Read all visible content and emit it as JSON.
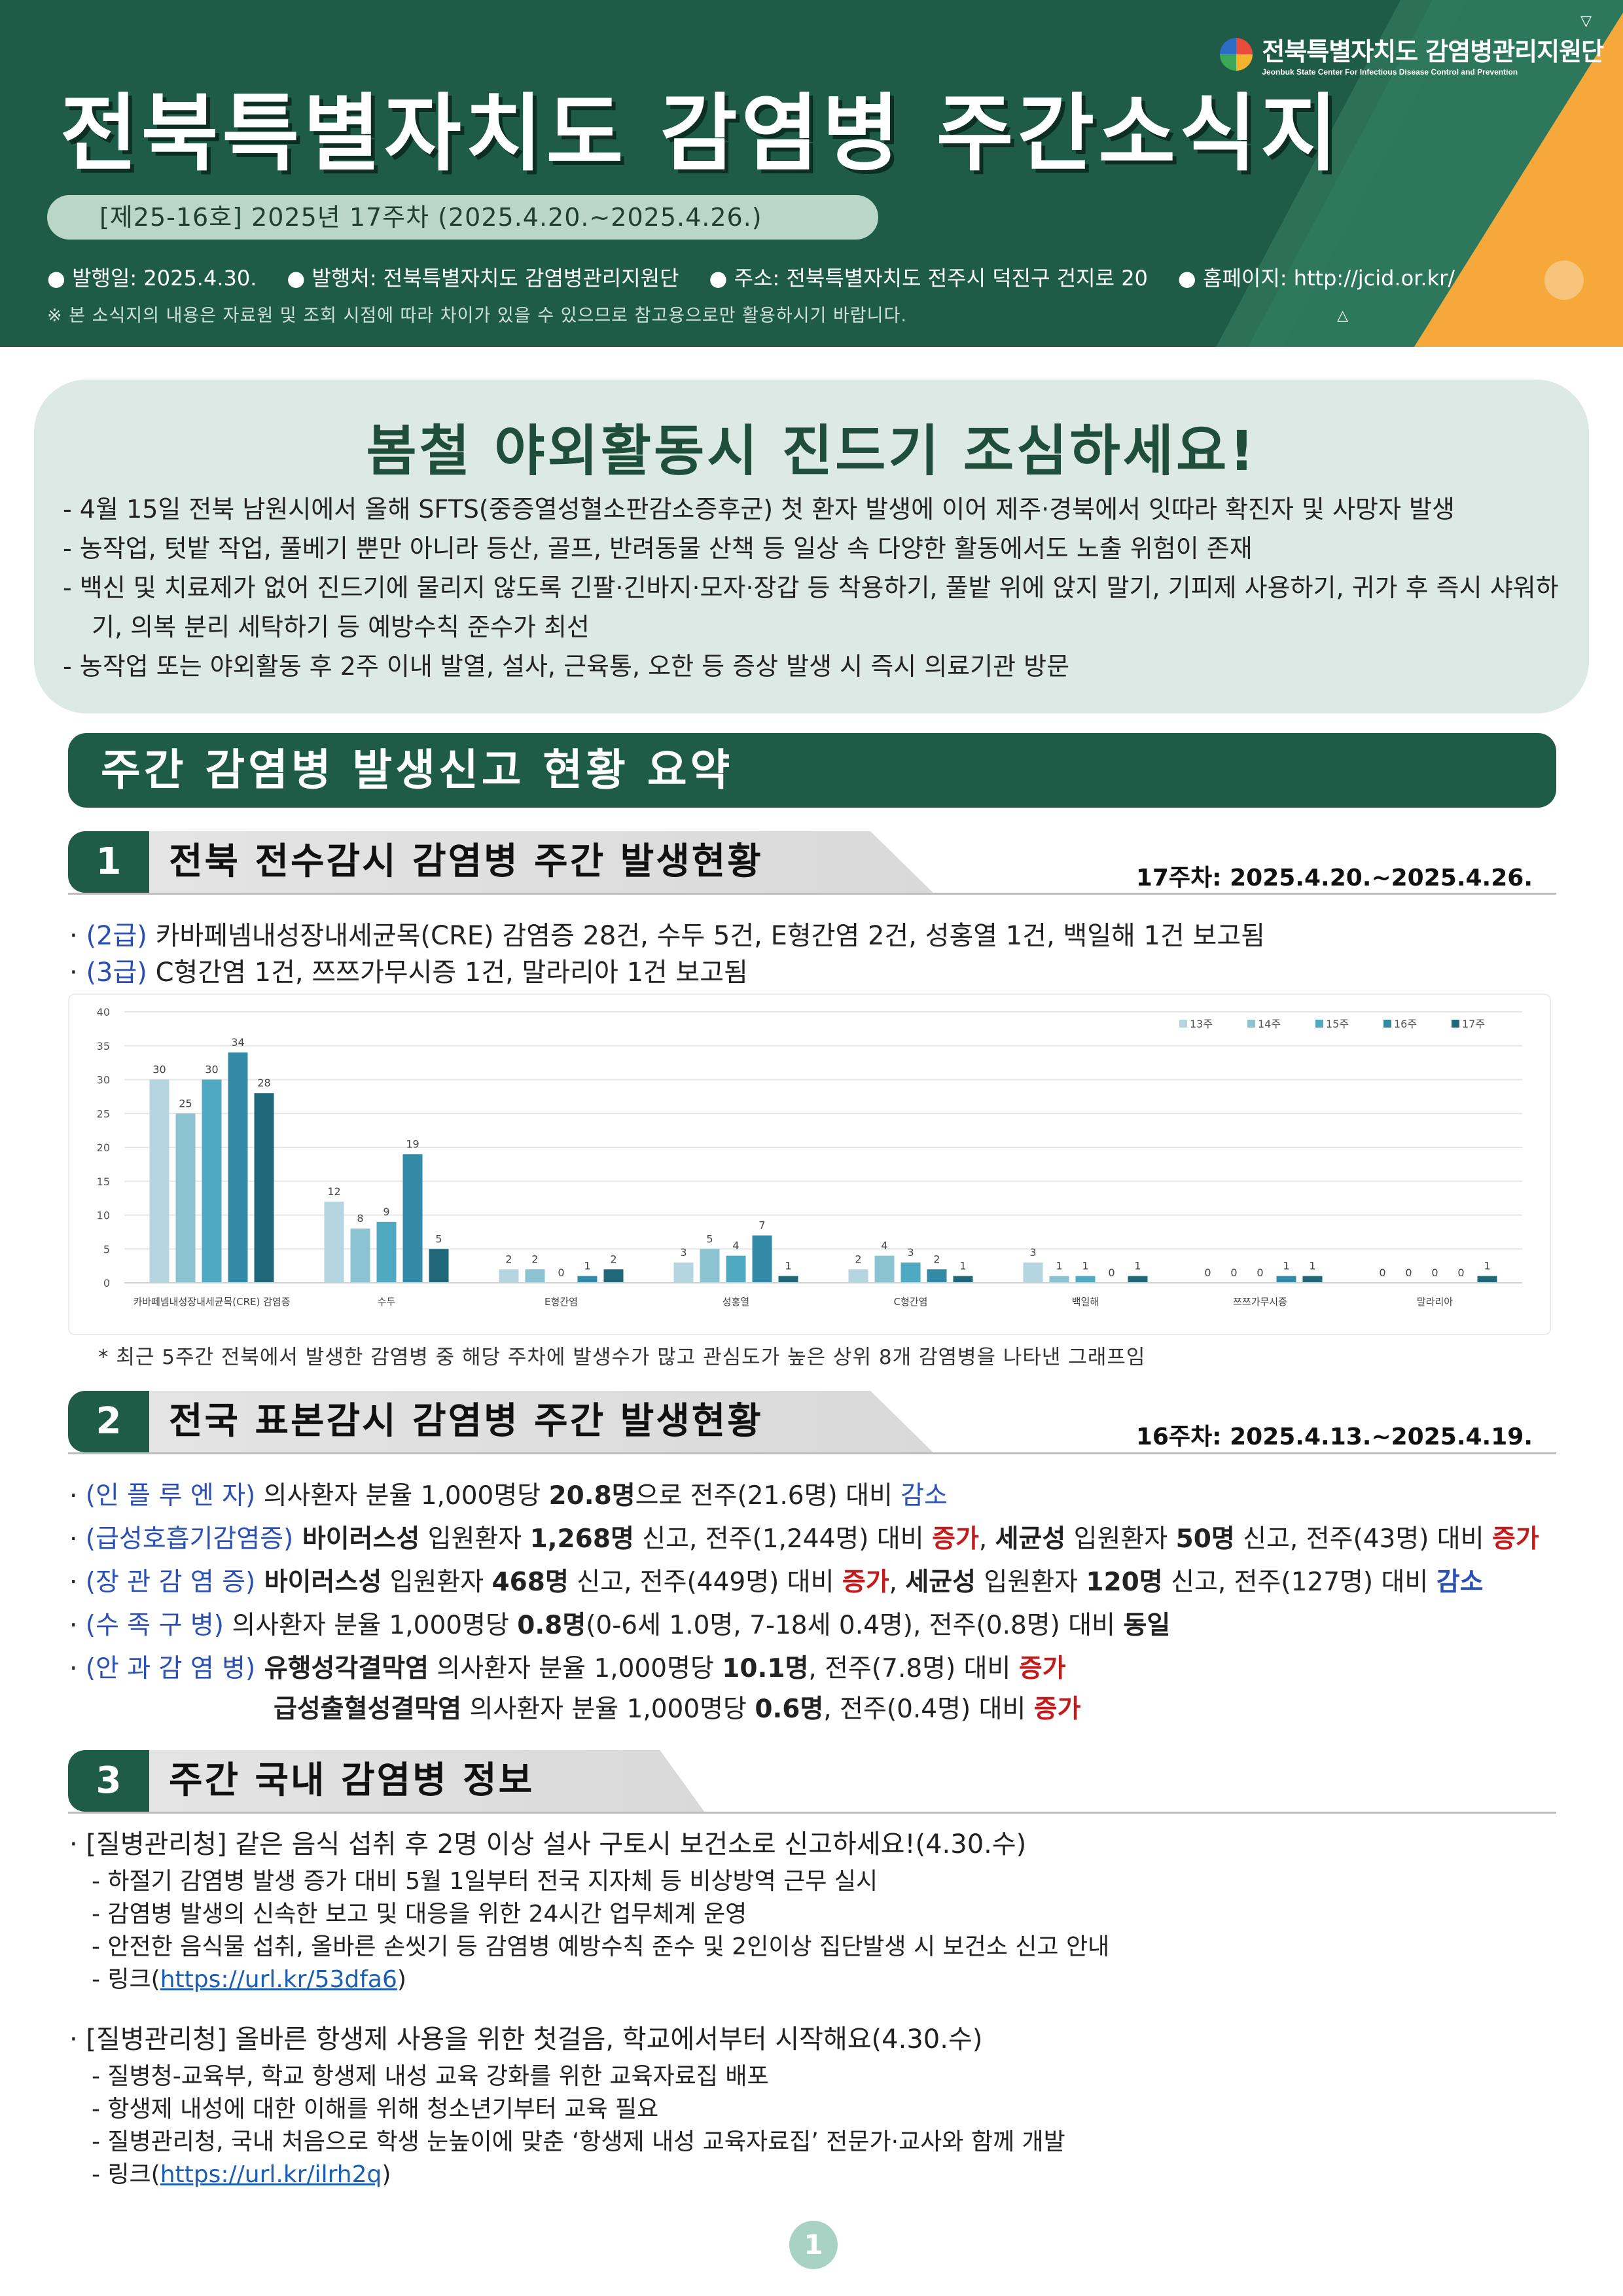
{
  "header": {
    "org_name_ko": "전북특별자치도 감염병관리지원단",
    "org_name_en": "Jeonbuk State Center For Infectious Disease Control and Prevention",
    "title": "전북특별자치도  감염병  주간소식지",
    "issue": "[제25-16호]  2025년  17주차  (2025.4.20.~2025.4.26.)",
    "meta": [
      "발행일: 2025.4.30.",
      "발행처: 전북특별자치도 감염병관리지원단",
      "주소: 전북특별자치도 전주시 덕진구 건지로 20",
      "홈페이지: http://jcid.or.kr/"
    ],
    "notice": "※ 본 소식지의 내용은 자료원 및 조회 시점에 따라 차이가 있을 수 있으므로 참고용으로만 활용하시기 바랍니다."
  },
  "highlight": {
    "title": "봄철  야외활동시  진드기  조심하세요!",
    "items": [
      "4월 15일 전북 남원시에서 올해 SFTS(중증열성혈소판감소증후군) 첫 환자 발생에 이어 제주·경북에서 잇따라 확진자 및 사망자 발생",
      "농작업, 텃밭 작업, 풀베기 뿐만 아니라 등산, 골프, 반려동물 산책 등 일상 속 다양한 활동에서도 노출 위험이 존재",
      "백신 및 치료제가 없어 진드기에 물리지 않도록 긴팔·긴바지·모자·장갑 등 착용하기, 풀밭 위에 앉지 말기, 기피제 사용하기, 귀가 후 즉시 샤워하기, 의복 분리 세탁하기 등 예방수칙 준수가 최선",
      "농작업 또는 야외활동 후 2주 이내 발열, 설사, 근육통, 오한 등 증상 발생 시 즉시 의료기관 방문"
    ]
  },
  "summary_title": "주간  감염병  발생신고  현황  요약",
  "section1": {
    "num": "1",
    "title": "전북  전수감시  감염병  주간  발생현황",
    "week": "17주차:  2025.4.20.~2025.4.26.",
    "line1_tag": "(2급)",
    "line1_text": " 카바페넴내성장내세균목(CRE) 감염증 28건, 수두 5건, E형간염 2건, 성홍열 1건, 백일해 1건 보고됨",
    "line2_tag": "(3급)",
    "line2_text": " C형간염 1건, 쯔쯔가무시증 1건, 말라리아 1건 보고됨",
    "note": "*  최근 5주간 전북에서 발생한 감염병 중 해당 주차에 발생수가 많고 관심도가 높은 상위 8개 감염병을 나타낸 그래프임"
  },
  "chart_data": {
    "type": "bar",
    "categories": [
      "카바페넴내성장내세균목(CRE) 감염증",
      "수두",
      "E형간염",
      "성홍열",
      "C형간염",
      "백일해",
      "쯔쯔가무시증",
      "말라리아"
    ],
    "series": [
      {
        "name": "13주",
        "color": "#b5d6e0",
        "values": [
          30,
          12,
          2,
          3,
          2,
          3,
          0,
          0
        ]
      },
      {
        "name": "14주",
        "color": "#8cc3d2",
        "values": [
          25,
          8,
          2,
          5,
          4,
          1,
          0,
          0
        ]
      },
      {
        "name": "15주",
        "color": "#4fa9c0",
        "values": [
          30,
          9,
          0,
          4,
          3,
          1,
          0,
          0
        ]
      },
      {
        "name": "16주",
        "color": "#338aa6",
        "values": [
          34,
          19,
          1,
          7,
          2,
          0,
          1,
          0
        ]
      },
      {
        "name": "17주",
        "color": "#21677a",
        "values": [
          28,
          5,
          2,
          1,
          1,
          1,
          1,
          1
        ]
      }
    ],
    "ylim": [
      0,
      40
    ],
    "yticks": [
      0,
      5,
      10,
      15,
      20,
      25,
      30,
      35,
      40
    ],
    "legend": "top-right",
    "grid": true
  },
  "section2": {
    "num": "2",
    "title": "전국  표본감시  감염병  주간  발생현황",
    "week": "16주차:  2025.4.13.~2025.4.19.",
    "rows": [
      {
        "tag": "(인 플 루 엔 자)",
        "parts": [
          {
            "t": " 의사환자 분율 1,000명당 ",
            "c": ""
          },
          {
            "t": "20.8명",
            "c": "bold"
          },
          {
            "t": "으로 전주(21.6명) 대비 ",
            "c": ""
          },
          {
            "t": "감소",
            "c": "blue"
          }
        ]
      },
      {
        "tag": "(급성호흡기감염증)",
        "parts": [
          {
            "t": " 바이러스성",
            "c": "bold"
          },
          {
            "t": " 입원환자 ",
            "c": ""
          },
          {
            "t": "1,268명",
            "c": "bold"
          },
          {
            "t": " 신고, 전주(1,244명) 대비 ",
            "c": ""
          },
          {
            "t": "증가",
            "c": "red bold"
          },
          {
            "t": ", ",
            "c": ""
          },
          {
            "t": "세균성",
            "c": "bold"
          },
          {
            "t": " 입원환자 ",
            "c": ""
          },
          {
            "t": "50명",
            "c": "bold"
          },
          {
            "t": " 신고, 전주(43명) 대비 ",
            "c": ""
          },
          {
            "t": "증가",
            "c": "red bold"
          }
        ]
      },
      {
        "tag": "(장 관 감 염 증)",
        "parts": [
          {
            "t": " 바이러스성",
            "c": "bold"
          },
          {
            "t": " 입원환자 ",
            "c": ""
          },
          {
            "t": "468명",
            "c": "bold"
          },
          {
            "t": " 신고, 전주(449명) 대비 ",
            "c": ""
          },
          {
            "t": "증가",
            "c": "red bold"
          },
          {
            "t": ", ",
            "c": ""
          },
          {
            "t": "세균성",
            "c": "bold"
          },
          {
            "t": " 입원환자 ",
            "c": ""
          },
          {
            "t": "120명",
            "c": "bold"
          },
          {
            "t": " 신고, 전주(127명) 대비 ",
            "c": ""
          },
          {
            "t": "감소",
            "c": "blue bold"
          }
        ]
      },
      {
        "tag": "(수   족   구   병)",
        "parts": [
          {
            "t": " 의사환자 분율 1,000명당 ",
            "c": ""
          },
          {
            "t": "0.8명",
            "c": "bold"
          },
          {
            "t": "(0-6세 1.0명, 7-18세 0.4명), 전주(0.8명) 대비 ",
            "c": ""
          },
          {
            "t": "동일",
            "c": "bold"
          }
        ]
      },
      {
        "tag": "(안 과 감 염 병)",
        "parts": [
          {
            "t": " 유행성각결막염",
            "c": "bold"
          },
          {
            "t": " 의사환자 분율 1,000명당 ",
            "c": ""
          },
          {
            "t": "10.1명",
            "c": "bold"
          },
          {
            "t": ", 전주(7.8명) 대비 ",
            "c": ""
          },
          {
            "t": "증가",
            "c": "red bold"
          }
        ]
      },
      {
        "tag": "",
        "parts": [
          {
            "t": "급성출혈성결막염",
            "c": "bold"
          },
          {
            "t": " 의사환자 분율 1,000명당 ",
            "c": ""
          },
          {
            "t": "0.6명",
            "c": "bold"
          },
          {
            "t": ", 전주(0.4명) 대비 ",
            "c": ""
          },
          {
            "t": "증가",
            "c": "red bold"
          }
        ]
      }
    ]
  },
  "section3": {
    "num": "3",
    "title": "주간  국내  감염병  정보",
    "news1": {
      "headline": "·  [질병관리청] 같은 음식 섭취 후 2명 이상 설사 구토시 보건소로 신고하세요!(4.30.수)",
      "items": [
        "- 하절기 감염병 발생 증가 대비 5월 1일부터 전국 지자체 등 비상방역 근무 실시",
        "- 감염병 발생의 신속한 보고 및 대응을 위한 24시간 업무체계 운영",
        "- 안전한 음식물 섭취, 올바른 손씻기 등 감염병 예방수칙 준수 및 2인이상 집단발생 시 보건소 신고 안내"
      ],
      "link_prefix": "- 링크(",
      "link": "https://url.kr/53dfa6",
      "link_suffix": ")"
    },
    "news2": {
      "headline": "·  [질병관리청] 올바른 항생제 사용을 위한 첫걸음, 학교에서부터 시작해요(4.30.수)",
      "items": [
        "- 질병청-교육부, 학교 항생제 내성 교육 강화를 위한 교육자료집 배포",
        "- 항생제 내성에 대한 이해를 위해 청소년기부터 교육 필요",
        "- 질병관리청, 국내 처음으로 학생 눈높이에 맞춘 ‘항생제 내성 교육자료집’ 전문가·교사와 함께 개발"
      ],
      "link_prefix": "- 링크(",
      "link": "https://url.kr/ilrh2q",
      "link_suffix": ")"
    }
  },
  "page_number": "1"
}
